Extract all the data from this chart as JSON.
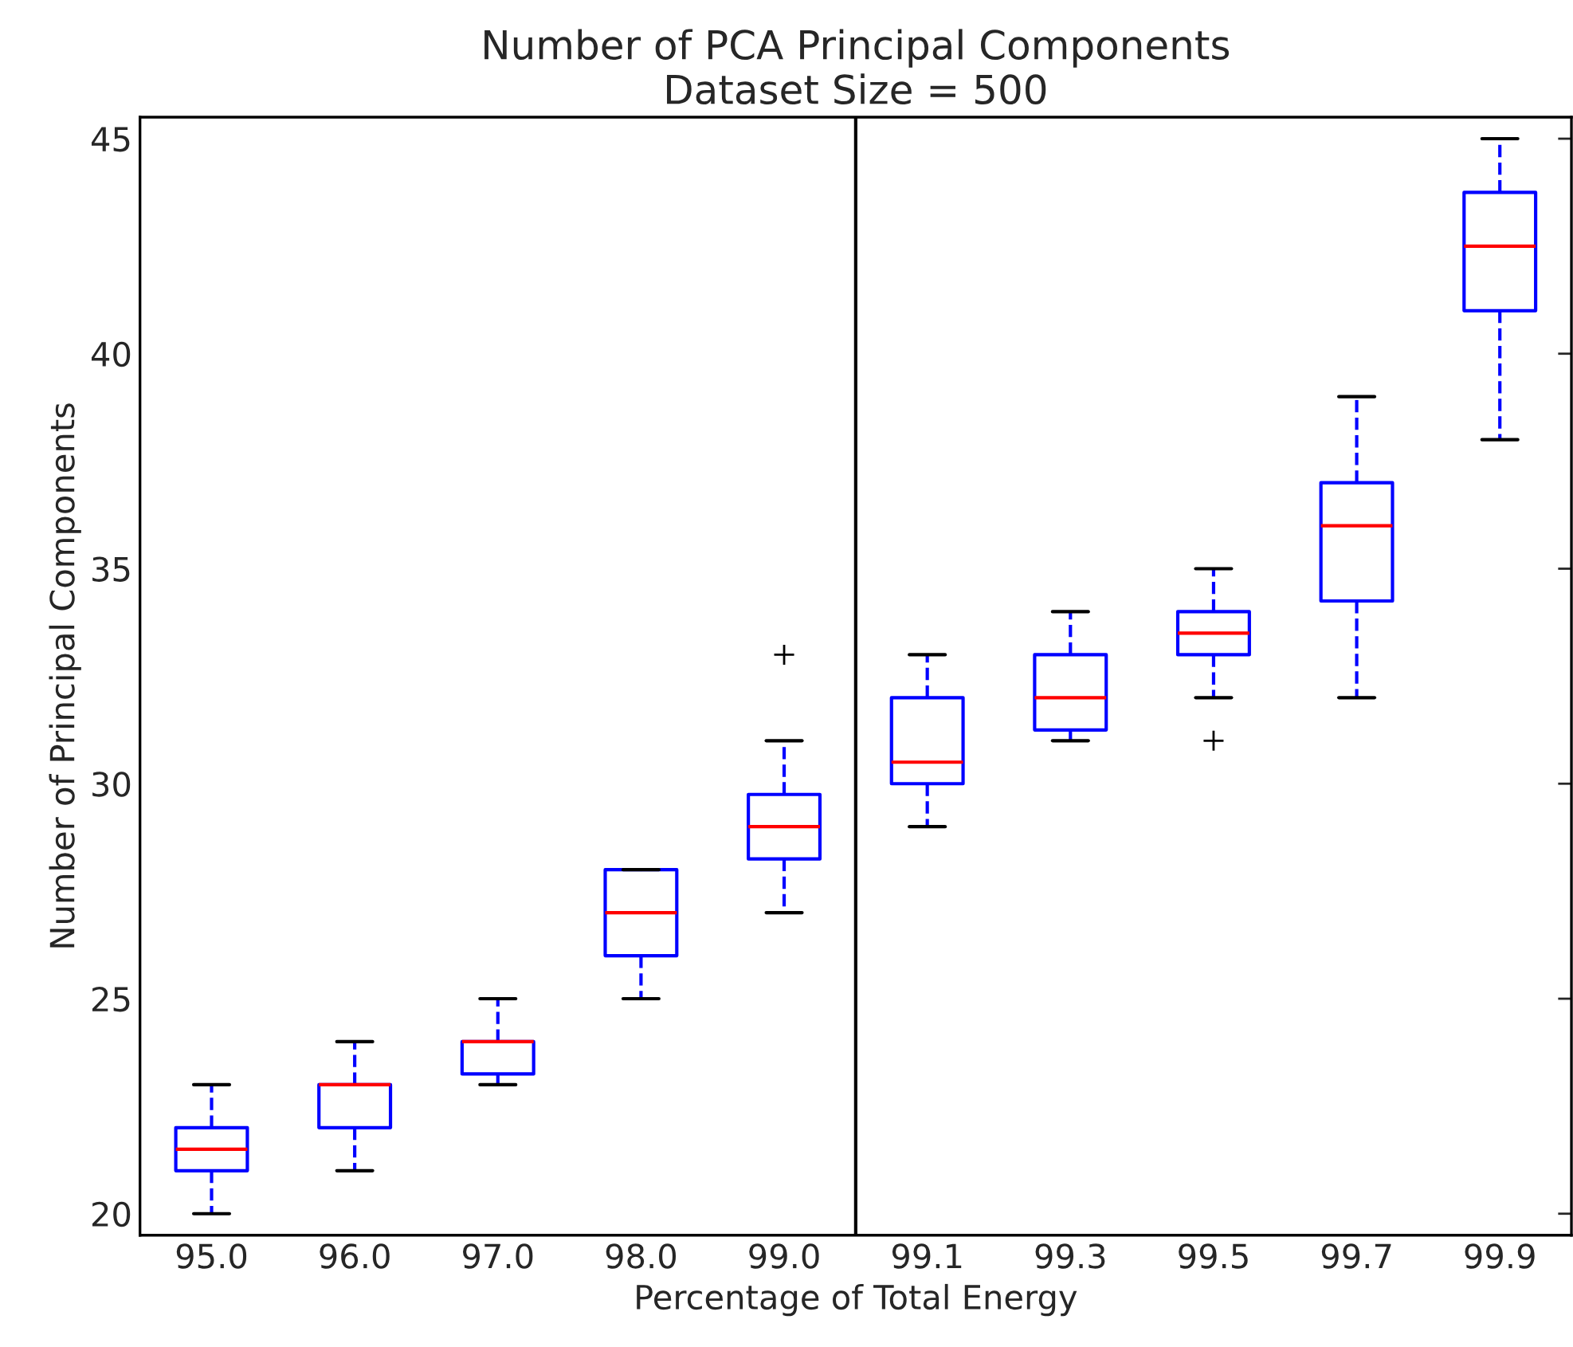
{
  "chart_data": {
    "type": "box",
    "title": "Number of PCA Principal Components\nDataset Size = 500",
    "xlabel": "Percentage of Total Energy",
    "ylabel": "Number of Principal Components",
    "categories": [
      "95.0",
      "96.0",
      "97.0",
      "98.0",
      "99.0",
      "99.1",
      "99.3",
      "99.5",
      "99.7",
      "99.9"
    ],
    "boxes": [
      {
        "low": 20,
        "q1": 21,
        "median": 21.5,
        "q3": 22,
        "high": 23
      },
      {
        "low": 21,
        "q1": 22,
        "median": 23,
        "q3": 23,
        "high": 24
      },
      {
        "low": 23,
        "q1": 23.25,
        "median": 24,
        "q3": 24,
        "high": 25
      },
      {
        "low": 25,
        "q1": 26,
        "median": 27,
        "q3": 28,
        "high": 28
      },
      {
        "low": 27,
        "q1": 28.25,
        "median": 29,
        "q3": 29.75,
        "high": 31,
        "outliers": [
          33
        ]
      },
      {
        "low": 29,
        "q1": 30,
        "median": 30.5,
        "q3": 32,
        "high": 33
      },
      {
        "low": 31,
        "q1": 31.25,
        "median": 32,
        "q3": 33,
        "high": 34
      },
      {
        "low": 32,
        "q1": 33,
        "median": 33.5,
        "q3": 34,
        "high": 35,
        "outliers": [
          31
        ]
      },
      {
        "low": 32,
        "q1": 34.25,
        "median": 36,
        "q3": 37,
        "high": 39
      },
      {
        "low": 38,
        "q1": 41,
        "median": 42.5,
        "q3": 43.75,
        "high": 45
      }
    ],
    "ylim": [
      19.5,
      45.5
    ],
    "yticks": [
      20,
      25,
      30,
      35,
      40,
      45
    ],
    "grid": false
  }
}
